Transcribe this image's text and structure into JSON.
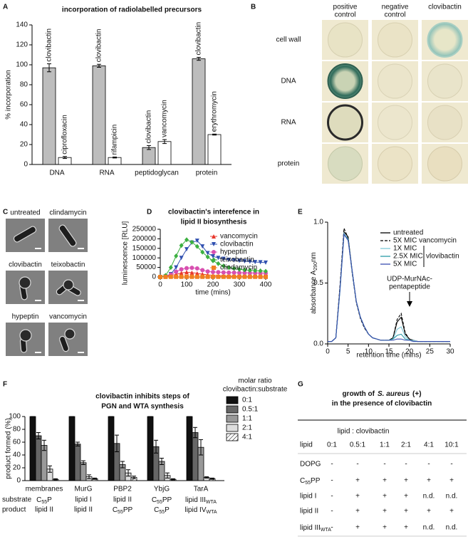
{
  "panel_letters": [
    "A",
    "B",
    "C",
    "D",
    "E",
    "F",
    "G"
  ],
  "chart_data": [
    {
      "type": "bar",
      "title": "incorporation of radiolabelled precursors",
      "y_label": "% incorporation",
      "categories": [
        "DNA",
        "RNA",
        "peptidoglycan",
        "protein"
      ],
      "ylim": [
        0,
        140
      ],
      "yticks": [
        0,
        20,
        40,
        60,
        80,
        100,
        120,
        140
      ],
      "series": [
        {
          "color": "#bdbdbd",
          "values": [
            97,
            99,
            17,
            106
          ],
          "errors": [
            4,
            1.5,
            2,
            1.5
          ],
          "labels": [
            "clovibactin",
            "clovibactin",
            "clovibactin",
            "clovibactin"
          ]
        },
        {
          "color": "#ffffff",
          "values": [
            7,
            7,
            23,
            30
          ],
          "errors": [
            1,
            0.5,
            2,
            0.5
          ],
          "labels": [
            "ciprofloxacin",
            "rifampicin",
            "vancomycin",
            "erythromycin"
          ]
        }
      ]
    },
    {
      "type": "line",
      "title": [
        "clovibactin's interefence in",
        "lipid II biosynthesis"
      ],
      "y_label": "luminescence [RLU]",
      "x_label": "time (mins)",
      "x": [
        0,
        20,
        40,
        60,
        80,
        100,
        120,
        140,
        160,
        180,
        200,
        220,
        240,
        260,
        280,
        300,
        320,
        340,
        360,
        380,
        400
      ],
      "xlim": [
        0,
        400
      ],
      "xticks": [
        0,
        100,
        200,
        300,
        400
      ],
      "ylim": [
        0,
        250000
      ],
      "yticks": [
        0,
        50000,
        100000,
        150000,
        200000,
        250000
      ],
      "series": [
        {
          "name": "vancomycin",
          "color": "#e8372c",
          "marker": "triangle",
          "values": [
            0,
            2000,
            7000,
            14000,
            21000,
            25000,
            23000,
            19000,
            15000,
            11000,
            8000,
            6000,
            5000,
            4000,
            3500,
            3000,
            2500,
            2000,
            2000,
            1500,
            1500
          ]
        },
        {
          "name": "clovibactin",
          "color": "#3050b0",
          "marker": "triangle-down",
          "values": [
            0,
            3000,
            15000,
            50000,
            100000,
            145000,
            180000,
            190000,
            160000,
            125000,
            108000,
            100000,
            95000,
            90000,
            87000,
            85000,
            82000,
            80000,
            78000,
            77000,
            75000
          ]
        },
        {
          "name": "hypeptin",
          "color": "#d84fb0",
          "marker": "circle",
          "values": [
            0,
            3000,
            12000,
            28000,
            40000,
            46000,
            48000,
            45000,
            36000,
            29000,
            26000,
            25000,
            24000,
            23000,
            23000,
            22000,
            22000,
            21000,
            21000,
            20000,
            20000
          ]
        },
        {
          "name": "teixobactin",
          "color": "#3cb040",
          "marker": "diamond",
          "values": [
            0,
            8000,
            50000,
            110000,
            165000,
            195000,
            182000,
            160000,
            130000,
            105000,
            85000,
            70000,
            58000,
            50000,
            45000,
            40000,
            37000,
            35000,
            33000,
            32000,
            30000
          ]
        },
        {
          "name": "clindamycin",
          "color": "#f07f20",
          "marker": "square",
          "values": [
            0,
            500,
            1000,
            1000,
            1000,
            1000,
            1000,
            1000,
            1000,
            1000,
            1000,
            1000,
            1000,
            1000,
            1000,
            1000,
            1000,
            1000,
            1000,
            1000,
            1000
          ]
        }
      ]
    },
    {
      "type": "line",
      "y_label": {
        "text": "absorbance A",
        "sub": "290",
        "tail": "nm"
      },
      "x_label": "retention time (mins)",
      "x": [
        0,
        1,
        2,
        3,
        4,
        5,
        6,
        7,
        8,
        9,
        10,
        11,
        12,
        13,
        14,
        15,
        16,
        17,
        18,
        19,
        20,
        21,
        22,
        23,
        24,
        25,
        26,
        27,
        28,
        29,
        30
      ],
      "xlim": [
        0,
        30
      ],
      "xticks": [
        0,
        5,
        10,
        15,
        20,
        25,
        30
      ],
      "ylim": [
        0,
        1
      ],
      "yticks": [
        {
          "value": 0,
          "label": "0.0"
        },
        {
          "value": 0.5,
          "label": "0.5"
        },
        {
          "value": 1,
          "label": "1.0"
        }
      ],
      "legend_group_label": "vlovibactin",
      "annotation": [
        "UDP-MurNAc-",
        "pentapeptide"
      ],
      "series": [
        {
          "name": "untreated",
          "color": "#000000",
          "line_style": "solid",
          "values": [
            0.02,
            0.02,
            0.05,
            0.45,
            0.92,
            0.88,
            0.6,
            0.35,
            0.22,
            0.14,
            0.08,
            0.05,
            0.04,
            0.03,
            0.03,
            0.03,
            0.05,
            0.18,
            0.22,
            0.08,
            0.04,
            0.03,
            0.02,
            0.02,
            0.02,
            0.02,
            0.02,
            0.02,
            0.02,
            0.02,
            0.02
          ]
        },
        {
          "name": "5X MIC vancomycin",
          "color": "#000000",
          "line_style": "dashed",
          "values": [
            0.02,
            0.02,
            0.05,
            0.47,
            0.95,
            0.87,
            0.58,
            0.34,
            0.21,
            0.13,
            0.08,
            0.05,
            0.04,
            0.03,
            0.03,
            0.03,
            0.05,
            0.2,
            0.25,
            0.09,
            0.04,
            0.03,
            0.02,
            0.02,
            0.02,
            0.02,
            0.02,
            0.02,
            0.02,
            0.02,
            0.02
          ]
        },
        {
          "name": "1X MIC",
          "color": "#7fc8d8",
          "line_style": "solid",
          "values": [
            0.02,
            0.02,
            0.05,
            0.44,
            0.91,
            0.86,
            0.59,
            0.35,
            0.22,
            0.14,
            0.08,
            0.05,
            0.04,
            0.03,
            0.03,
            0.03,
            0.04,
            0.12,
            0.14,
            0.06,
            0.03,
            0.03,
            0.02,
            0.02,
            0.02,
            0.02,
            0.02,
            0.02,
            0.02,
            0.02,
            0.02
          ]
        },
        {
          "name": "2.5X MIC",
          "color": "#2a9aa8",
          "line_style": "solid",
          "values": [
            0.02,
            0.02,
            0.05,
            0.43,
            0.9,
            0.86,
            0.6,
            0.35,
            0.22,
            0.14,
            0.08,
            0.05,
            0.04,
            0.03,
            0.03,
            0.03,
            0.04,
            0.07,
            0.08,
            0.04,
            0.03,
            0.02,
            0.02,
            0.02,
            0.02,
            0.02,
            0.02,
            0.02,
            0.02,
            0.02,
            0.02
          ]
        },
        {
          "name": "5X MIC",
          "color": "#3a4fb0",
          "line_style": "solid",
          "values": [
            0.02,
            0.02,
            0.05,
            0.44,
            0.9,
            0.85,
            0.6,
            0.35,
            0.22,
            0.14,
            0.08,
            0.05,
            0.04,
            0.03,
            0.03,
            0.03,
            0.03,
            0.04,
            0.04,
            0.03,
            0.03,
            0.02,
            0.02,
            0.02,
            0.02,
            0.02,
            0.02,
            0.02,
            0.02,
            0.02,
            0.02
          ]
        }
      ]
    },
    {
      "type": "bar",
      "title": [
        "clovibactin inhibits steps of",
        "PGN and WTA synthesis"
      ],
      "y_label": "product formed (%)",
      "legend_title": [
        "molar ratio",
        "clovibactin:substrate"
      ],
      "categories": [
        "membranes",
        "MurG",
        "PBP2",
        "YbjG",
        "TarA"
      ],
      "row_labels": [
        "substrate",
        "product"
      ],
      "substrates": [
        {
          "text": "C",
          "sub": "55",
          "tail": "P"
        },
        "lipid I",
        "lipid II",
        {
          "text": "C",
          "sub": "55",
          "tail": "PP"
        },
        {
          "text": "lipid III",
          "sub": "WTA"
        }
      ],
      "products": [
        "lipid II",
        "lipid II",
        {
          "text": "C",
          "sub": "55",
          "tail": "PP"
        },
        {
          "text": "C",
          "sub": "55",
          "tail": "P"
        },
        {
          "text": "lipid IV",
          "sub": "WTA"
        }
      ],
      "ylim": [
        0,
        100
      ],
      "yticks": [
        0,
        20,
        40,
        60,
        80,
        100
      ],
      "series": [
        {
          "name": "0:1",
          "color": "#111111",
          "values": [
            100,
            100,
            100,
            100,
            100
          ],
          "errors": [
            0,
            0,
            0,
            0,
            0
          ]
        },
        {
          "name": "0.5:1",
          "color": "#666666",
          "values": [
            70,
            57,
            58,
            53,
            75
          ],
          "errors": [
            5,
            3,
            13,
            10,
            8
          ]
        },
        {
          "name": "1:1",
          "color": "#999999",
          "values": [
            55,
            28,
            25,
            30,
            52
          ],
          "errors": [
            8,
            3,
            5,
            5,
            12
          ]
        },
        {
          "name": "2:1",
          "color": "#dddddd",
          "values": [
            18,
            6,
            12,
            8,
            5
          ],
          "errors": [
            5,
            3,
            5,
            4,
            1
          ]
        },
        {
          "name": "4:1",
          "color": "#ffffff",
          "pattern": "hatch",
          "values": [
            2,
            3,
            5,
            2,
            3
          ],
          "errors": [
            1,
            1,
            2,
            1,
            1
          ]
        }
      ]
    }
  ],
  "panel_b": {
    "columns": [
      [
        "positive",
        "control"
      ],
      [
        "negative",
        "control"
      ],
      [
        "clovibactin"
      ]
    ],
    "rows": [
      "cell wall",
      "DNA",
      "RNA",
      "protein"
    ]
  },
  "panel_c": {
    "labels": [
      "untreated",
      "clindamycin",
      "clovibactin",
      "teixobactin",
      "hypeptin",
      "vancomycin"
    ]
  },
  "panel_g": {
    "title_pre": "growth of",
    "title_species": "S. aureus",
    "title_post": "(+)",
    "title_line2": "in the presence of clovibactin",
    "header_group": "lipid : clovibactin",
    "columns": [
      "lipid",
      "0:1",
      "0.5:1",
      "1:1",
      "2:1",
      "4:1",
      "10:1"
    ],
    "rows": [
      [
        "DOPG",
        "-",
        "-",
        "-",
        "-",
        "-",
        "-"
      ],
      [
        {
          "text": "C",
          "sub": "55",
          "tail": "PP"
        },
        "-",
        "+",
        "+",
        "+",
        "+",
        "+"
      ],
      [
        "lipid I",
        "-",
        "+",
        "+",
        "+",
        "n.d.",
        "n.d."
      ],
      [
        "lipid II",
        "-",
        "+",
        "+",
        "+",
        "+",
        "+"
      ],
      [
        {
          "text": "lipid III",
          "sub": "WTA"
        },
        "-",
        "+",
        "+",
        "+",
        "n.d.",
        "n.d."
      ]
    ]
  }
}
